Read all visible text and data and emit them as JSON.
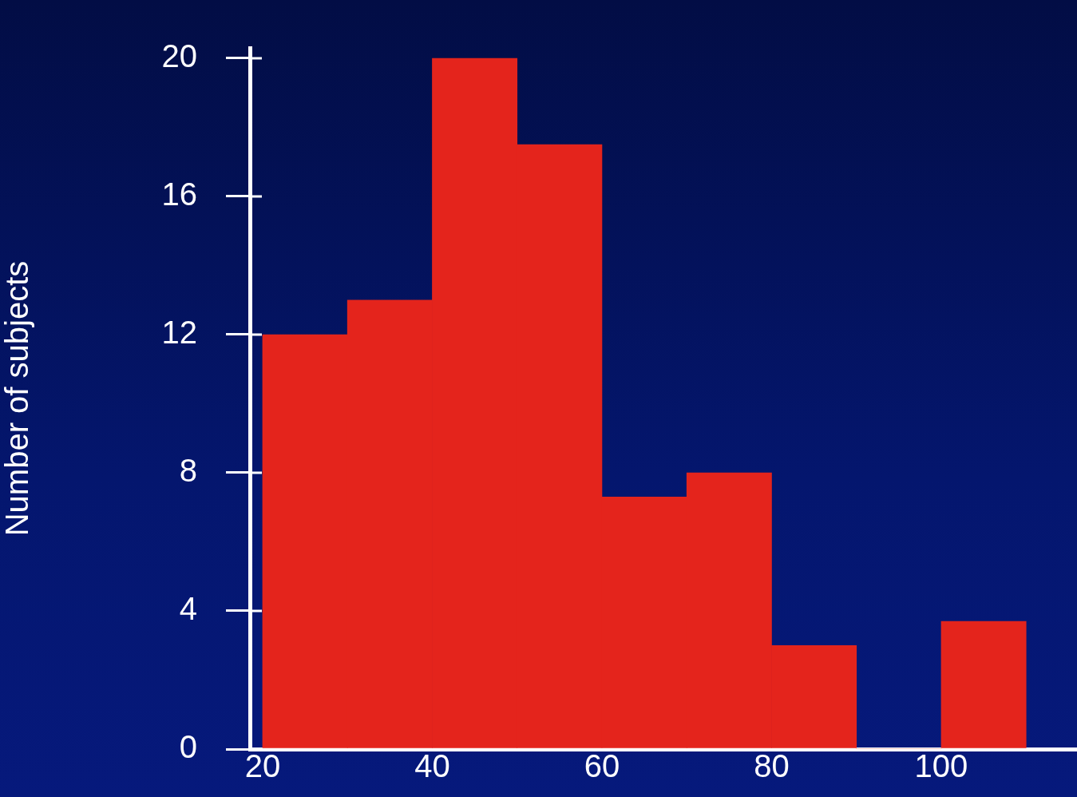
{
  "chart_data": {
    "type": "histogram",
    "ylabel": "Number of subjects",
    "bins": [
      20,
      30,
      40,
      50,
      60,
      70,
      80,
      90,
      100,
      110
    ],
    "values": [
      12,
      13,
      20,
      17.5,
      7.3,
      8,
      3,
      0,
      3.7
    ],
    "color": "#e4241c",
    "xlim": [
      18.5,
      116
    ],
    "ylim": [
      0,
      20.3
    ],
    "xticks": [
      20,
      40,
      60,
      80,
      100
    ],
    "yticks": [
      0,
      4,
      8,
      12,
      16,
      20
    ],
    "grid": false,
    "legend": false
  }
}
